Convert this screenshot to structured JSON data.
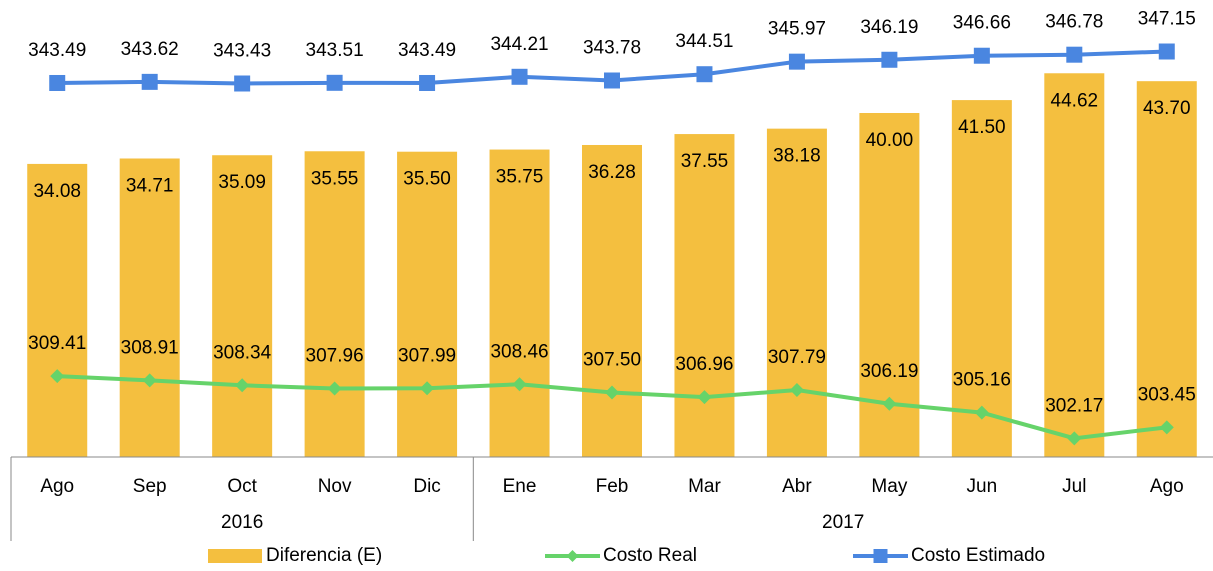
{
  "chart_data": {
    "type": "combo",
    "categories": [
      "Ago",
      "Sep",
      "Oct",
      "Nov",
      "Dic",
      "Ene",
      "Feb",
      "Mar",
      "Abr",
      "May",
      "Jun",
      "Jul",
      "Ago"
    ],
    "groups": [
      {
        "name": "2016",
        "count": 5
      },
      {
        "name": "2017",
        "count": 8
      }
    ],
    "ylim": [
      0,
      50
    ],
    "y2lim": [
      300,
      350
    ],
    "series": [
      {
        "name": "Diferencia (E)",
        "type": "bar",
        "color": "#f4bf3f",
        "values": [
          34.08,
          34.71,
          35.09,
          35.55,
          35.5,
          35.75,
          36.28,
          37.55,
          38.18,
          40.0,
          41.5,
          44.62,
          43.7
        ],
        "value_labels": [
          "34.08",
          "34.71",
          "35.09",
          "35.55",
          "35.50",
          "35.75",
          "36.28",
          "37.55",
          "38.18",
          "40.00",
          "41.50",
          "44.62",
          "43.70"
        ]
      },
      {
        "name": "Costo Real",
        "type": "line",
        "marker": "diamond",
        "axis": "y2",
        "color": "#66d36a",
        "values": [
          309.41,
          308.91,
          308.34,
          307.96,
          307.99,
          308.46,
          307.5,
          306.96,
          307.79,
          306.19,
          305.16,
          302.17,
          303.45
        ],
        "value_labels": [
          "309.41",
          "308.91",
          "308.34",
          "307.96",
          "307.99",
          "308.46",
          "307.50",
          "306.96",
          "307.79",
          "306.19",
          "305.16",
          "302.17",
          "303.45"
        ]
      },
      {
        "name": "Costo Estimado",
        "type": "line",
        "marker": "square",
        "axis": "y2",
        "color": "#4a86e0",
        "values": [
          343.49,
          343.62,
          343.43,
          343.51,
          343.49,
          344.21,
          343.78,
          344.51,
          345.97,
          346.19,
          346.66,
          346.78,
          347.15
        ],
        "value_labels": [
          "343.49",
          "343.62",
          "343.43",
          "343.51",
          "343.49",
          "344.21",
          "343.78",
          "344.51",
          "345.97",
          "346.19",
          "346.66",
          "346.78",
          "347.15"
        ]
      }
    ]
  }
}
